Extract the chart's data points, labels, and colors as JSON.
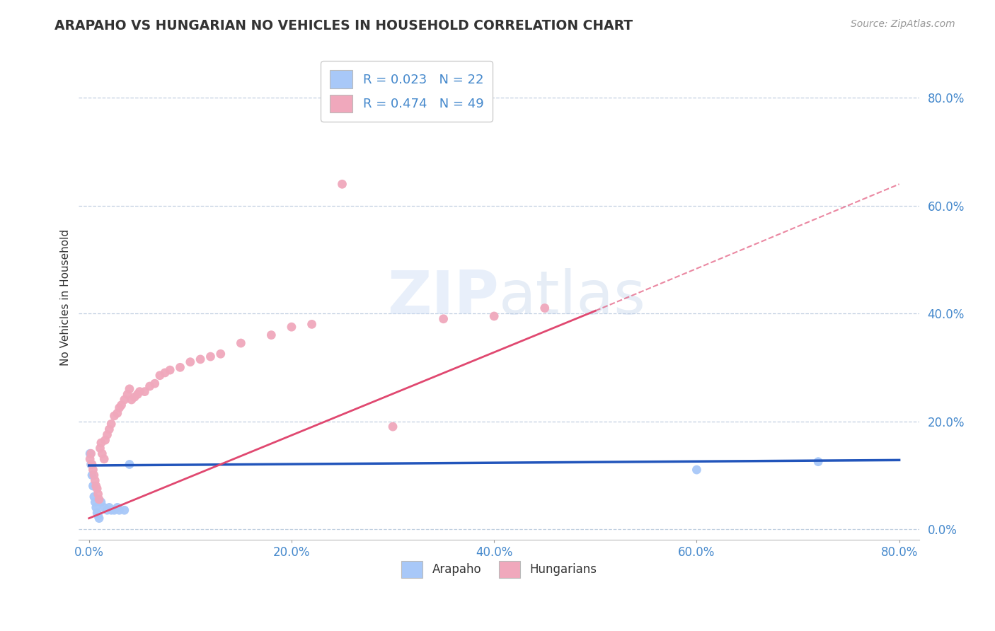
{
  "title": "ARAPAHO VS HUNGARIAN NO VEHICLES IN HOUSEHOLD CORRELATION CHART",
  "source": "Source: ZipAtlas.com",
  "ylabel": "No Vehicles in Household",
  "arapaho_color": "#a8c8f8",
  "hungarian_color": "#f0a8bc",
  "arapaho_line_color": "#2255bb",
  "hungarian_line_color": "#e04870",
  "background_color": "#ffffff",
  "grid_color": "#c0cfe0",
  "title_color": "#333333",
  "axis_label_color": "#4488cc",
  "xticks": [
    0.0,
    0.2,
    0.4,
    0.6,
    0.8
  ],
  "yticks": [
    0.0,
    0.2,
    0.4,
    0.6,
    0.8
  ],
  "xtick_labels": [
    "0.0%",
    "20.0%",
    "40.0%",
    "60.0%",
    "80.0%"
  ],
  "ytick_labels": [
    "0.0%",
    "20.0%",
    "40.0%",
    "60.0%",
    "80.0%"
  ],
  "arapaho_x": [
    0.001,
    0.002,
    0.003,
    0.004,
    0.005,
    0.006,
    0.007,
    0.008,
    0.009,
    0.01,
    0.012,
    0.015,
    0.018,
    0.02,
    0.022,
    0.025,
    0.028,
    0.03,
    0.035,
    0.04,
    0.6,
    0.72
  ],
  "arapaho_y": [
    0.14,
    0.12,
    0.1,
    0.08,
    0.06,
    0.05,
    0.04,
    0.03,
    0.025,
    0.02,
    0.05,
    0.04,
    0.035,
    0.04,
    0.035,
    0.035,
    0.04,
    0.035,
    0.035,
    0.12,
    0.11,
    0.125
  ],
  "hungarian_x": [
    0.001,
    0.002,
    0.003,
    0.004,
    0.005,
    0.006,
    0.007,
    0.008,
    0.009,
    0.01,
    0.011,
    0.012,
    0.013,
    0.015,
    0.016,
    0.018,
    0.02,
    0.022,
    0.025,
    0.028,
    0.03,
    0.032,
    0.035,
    0.038,
    0.04,
    0.042,
    0.045,
    0.048,
    0.05,
    0.055,
    0.06,
    0.065,
    0.07,
    0.075,
    0.08,
    0.09,
    0.1,
    0.11,
    0.12,
    0.13,
    0.15,
    0.18,
    0.2,
    0.22,
    0.25,
    0.3,
    0.35,
    0.4,
    0.45
  ],
  "hungarian_y": [
    0.13,
    0.14,
    0.12,
    0.11,
    0.1,
    0.09,
    0.08,
    0.075,
    0.065,
    0.055,
    0.15,
    0.16,
    0.14,
    0.13,
    0.165,
    0.175,
    0.185,
    0.195,
    0.21,
    0.215,
    0.225,
    0.23,
    0.24,
    0.25,
    0.26,
    0.24,
    0.245,
    0.25,
    0.255,
    0.255,
    0.265,
    0.27,
    0.285,
    0.29,
    0.295,
    0.3,
    0.31,
    0.315,
    0.32,
    0.325,
    0.345,
    0.36,
    0.375,
    0.38,
    0.64,
    0.19,
    0.39,
    0.395,
    0.41
  ],
  "arapaho_r": "R = 0.023",
  "arapaho_n": "N = 22",
  "hungarian_r": "R = 0.474",
  "hungarian_n": "N = 49"
}
